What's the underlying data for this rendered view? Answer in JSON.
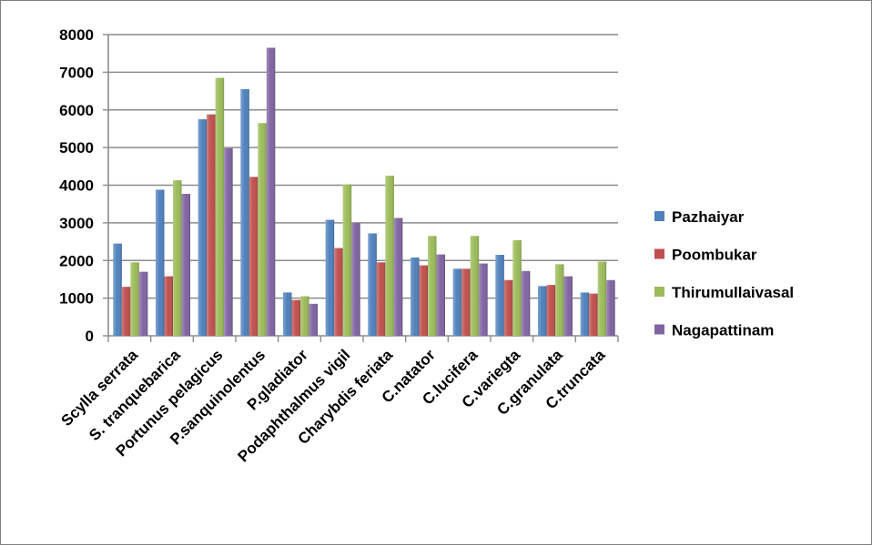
{
  "chart_data": {
    "type": "bar",
    "title": "",
    "xlabel": "",
    "ylabel": "",
    "ylim": [
      0,
      8000
    ],
    "yticks": [
      0,
      1000,
      2000,
      3000,
      4000,
      5000,
      6000,
      7000,
      8000
    ],
    "grid": true,
    "legend_position": "right",
    "categories": [
      "Scylla serrata",
      "S. tranquebarica",
      "Portunus pelagicus",
      "P.sanquinolentus",
      "P.gladiator",
      "Podaphthalmus vigil",
      "Charybdis feriata",
      "C.natator",
      "C.lucifera",
      "C.variegta",
      "C.granulata",
      "C.truncata"
    ],
    "series": [
      {
        "name": "Pazhaiyar",
        "color": "#4F81BD",
        "values": [
          2450,
          3880,
          5750,
          6550,
          1150,
          3080,
          2720,
          2080,
          1780,
          2150,
          1320,
          1150
        ]
      },
      {
        "name": "Poombukar",
        "color": "#C0504D",
        "values": [
          1300,
          1580,
          5880,
          4220,
          950,
          2330,
          1950,
          1870,
          1780,
          1480,
          1350,
          1120
        ]
      },
      {
        "name": "Thirumullaivasal",
        "color": "#9BBB59",
        "values": [
          1950,
          4130,
          6850,
          5650,
          1050,
          4020,
          4250,
          2650,
          2650,
          2540,
          1900,
          1970
        ]
      },
      {
        "name": "Nagapattinam",
        "color": "#8064A2",
        "values": [
          1700,
          3770,
          4980,
          7650,
          850,
          3000,
          3130,
          2160,
          1920,
          1720,
          1580,
          1480
        ]
      }
    ]
  }
}
